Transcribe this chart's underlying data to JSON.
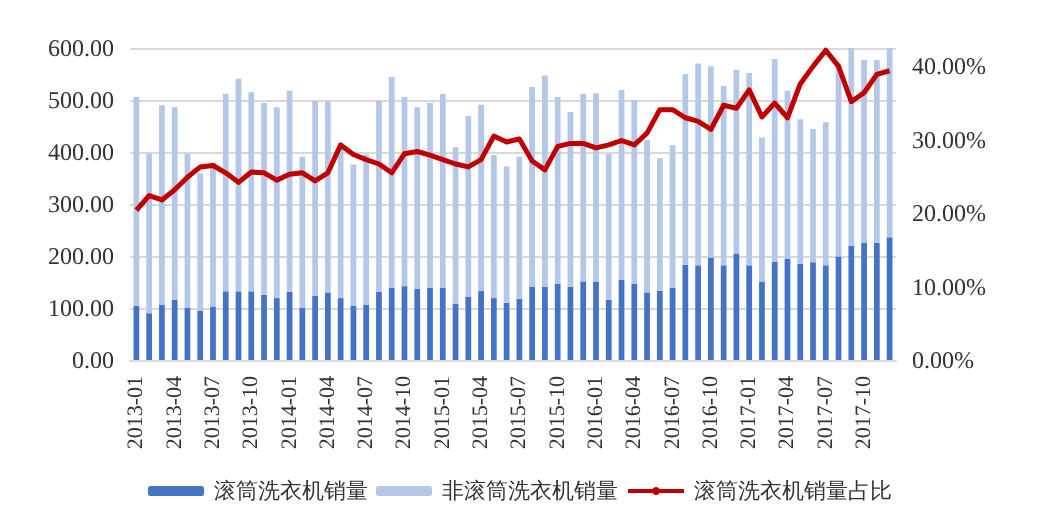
{
  "chart_data": {
    "type": "bar",
    "stacked": true,
    "categories": [
      "2013-01",
      null,
      null,
      "2013-04",
      null,
      null,
      "2013-07",
      null,
      null,
      "2013-10",
      null,
      null,
      "2014-01",
      null,
      null,
      "2014-04",
      null,
      null,
      "2014-07",
      null,
      null,
      "2014-10",
      null,
      null,
      "2015-01",
      null,
      null,
      "2015-04",
      null,
      null,
      "2015-07",
      null,
      null,
      "2015-10",
      null,
      null,
      "2016-01",
      null,
      null,
      "2016-04",
      null,
      null,
      "2016-07",
      null,
      null,
      "2016-10",
      null,
      null,
      "2017-01",
      null,
      null,
      "2017-04",
      null,
      null,
      "2017-07",
      null,
      null,
      "2017-10",
      null,
      null
    ],
    "series": [
      {
        "name": "滚筒洗衣机销量",
        "color": "#4472c4",
        "values": [
          104,
          90,
          106,
          116,
          100,
          95,
          102,
          132,
          132,
          132,
          125,
          119,
          131,
          100,
          123,
          130,
          119,
          104,
          106,
          131,
          139,
          142,
          137,
          139,
          139,
          108,
          122,
          133,
          119,
          110,
          118,
          141,
          141,
          147,
          141,
          151,
          151,
          116,
          154,
          147,
          130,
          133,
          139,
          183,
          182,
          197,
          182,
          205,
          182,
          151,
          189,
          195,
          185,
          188,
          182,
          199,
          220,
          226,
          225,
          236
        ]
      },
      {
        "name": "非滚筒洗衣机销量",
        "color": "#b4c7e7",
        "values": [
          402,
          307,
          384,
          370,
          296,
          264,
          278,
          380,
          409,
          383,
          369,
          367,
          387,
          291,
          375,
          368,
          298,
          272,
          289,
          367,
          405,
          364,
          349,
          355,
          373,
          301,
          347,
          358,
          275,
          262,
          273,
          384,
          406,
          359,
          336,
          361,
          362,
          280,
          365,
          353,
          293,
          255,
          274,
          367,
          388,
          368,
          345,
          353,
          370,
          277,
          390,
          323,
          278,
          256,
          275,
          371,
          380,
          351,
          352,
          364
        ]
      },
      {
        "name": "滚筒洗衣机销量占比",
        "type": "line",
        "axis": "y2",
        "color": "#c00000",
        "values": [
          20.4,
          22.4,
          21.8,
          23.2,
          24.9,
          26.3,
          26.5,
          25.5,
          24.2,
          25.6,
          25.5,
          24.5,
          25.3,
          25.5,
          24.4,
          25.5,
          29.3,
          28.0,
          27.3,
          26.7,
          25.5,
          28.1,
          28.4,
          27.9,
          27.3,
          26.7,
          26.3,
          27.3,
          30.5,
          29.7,
          30.1,
          27.1,
          25.9,
          29.1,
          29.5,
          29.5,
          28.9,
          29.3,
          29.9,
          29.3,
          30.9,
          34.1,
          34.1,
          33.0,
          32.5,
          31.4,
          34.7,
          34.3,
          36.8,
          33.1,
          35.0,
          33.0,
          37.6,
          40.0,
          42.2,
          40.0,
          35.2,
          36.4,
          38.9,
          39.4
        ]
      }
    ],
    "ylim": [
      0,
      600
    ],
    "yticks": [
      {
        "value": 0,
        "label": "0.00"
      },
      {
        "value": 100,
        "label": "100.00"
      },
      {
        "value": 200,
        "label": "200.00"
      },
      {
        "value": 300,
        "label": "300.00"
      },
      {
        "value": 400,
        "label": "400.00"
      },
      {
        "value": 500,
        "label": "500.00"
      },
      {
        "value": 600,
        "label": "600.00"
      }
    ],
    "y2lim": [
      0,
      42.5
    ],
    "y2ticks": [
      {
        "value": 0,
        "label": "0.00%"
      },
      {
        "value": 10,
        "label": "10.00%"
      },
      {
        "value": 20,
        "label": "20.00%"
      },
      {
        "value": 30,
        "label": "30.00%"
      },
      {
        "value": 40,
        "label": "40.00%"
      }
    ],
    "grid": "y",
    "legend": "bottom"
  }
}
